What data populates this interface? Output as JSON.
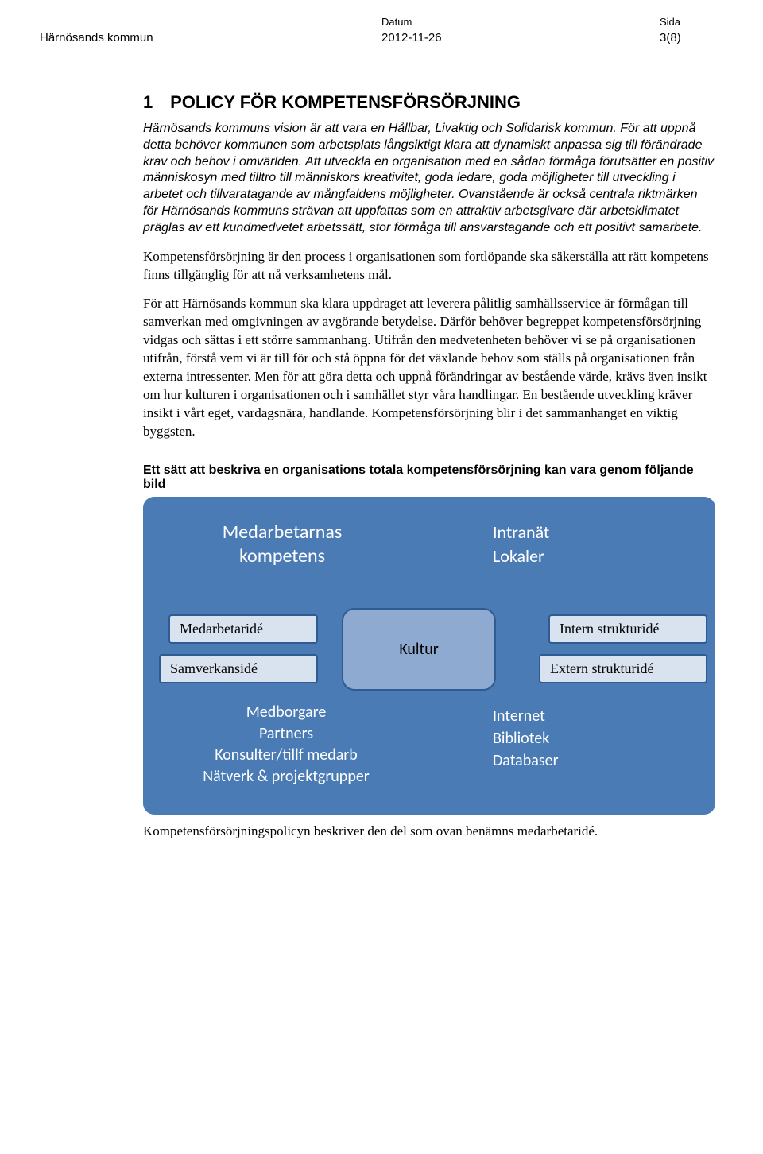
{
  "header": {
    "org": "Härnösands kommun",
    "date_label": "Datum",
    "date_value": "2012-11-26",
    "page_label": "Sida",
    "page_value": "3(8)"
  },
  "title_number": "1",
  "title_text": "POLICY FÖR KOMPETENSFÖRSÖRJNING",
  "intro_italic": "Härnösands kommuns vision är att vara en Hållbar, Livaktig och Solidarisk kommun. För att uppnå detta behöver kommunen som arbetsplats långsiktigt klara att dynamiskt anpassa sig till förändrade krav och behov i omvärlden. Att utveckla en organisation med en sådan förmåga förutsätter en positiv människosyn med tilltro till människors kreativitet, goda ledare, goda möjligheter till utveckling i arbetet och tillvaratagande av mångfaldens möjligheter. Ovanstående är också centrala riktmärken för Härnösands kommuns strävan att uppfattas som en attraktiv arbetsgivare där arbetsklimatet präglas av ett kundmedvetet arbetssätt, stor förmåga till ansvarstagande och ett positivt samarbete.",
  "para1": "Kompetensförsörjning är den process i organisationen som fortlöpande ska säkerställa att rätt kompetens finns tillgänglig för att nå verksamhetens mål.",
  "para2": "För att Härnösands kommun ska klara uppdraget att leverera pålitlig samhällsservice är förmågan till samverkan med omgivningen av avgörande betydelse. Därför behöver begreppet kompetensförsörjning vidgas och sättas i ett större sammanhang. Utifrån den medvetenheten behöver vi se på organisationen utifrån, förstå vem vi är till för och stå öppna för det växlande behov som ställs på organisationen från externa intressenter. Men för att göra detta och uppnå förändringar av bestående värde, krävs även insikt om hur kulturen i organisationen och i samhället styr våra handlingar. En bestående utveckling kräver insikt i vårt eget, vardagsnära, handlande. Kompetensförsörjning blir i det sammanhanget en viktig byggsten.",
  "fig_caption": "Ett sätt att beskriva en organisations totala kompetensförsörjning kan vara genom följande bild",
  "diagram": {
    "type": "infographic",
    "background_color": "#4a7bb5",
    "border_radius": 14,
    "text_color": "#ffffff",
    "center": {
      "label": "Kultur",
      "fill": "#8faad0",
      "border_color": "#2f5b93",
      "text_color": "#000000",
      "fontsize": 20
    },
    "tag_style": {
      "fill": "#d9e2ef",
      "border_color": "#2f5b93",
      "text_color": "#000000",
      "fontsize": 18
    },
    "top_left": {
      "line1": "Medarbetarnas",
      "line2": "kompetens",
      "fontsize": 24
    },
    "top_right": {
      "line1": "Intranät",
      "line2": "Lokaler",
      "fontsize": 22
    },
    "bottom_left": {
      "line1": "Medborgare",
      "line2": "Partners",
      "line3": "Konsulter/tillf medarb",
      "line4": "Nätverk & projektgrupper",
      "fontsize": 20
    },
    "bottom_right": {
      "line1": "Internet",
      "line2": "Bibliotek",
      "line3": "Databaser",
      "fontsize": 20
    },
    "tags": {
      "medarbetaride": "Medarbetaridé",
      "samverkanside": "Samverkansidé",
      "internstruktur": "Intern strukturidé",
      "externstruktur": "Extern strukturidé"
    }
  },
  "closing": "Kompetensförsörjningspolicyn beskriver den del som ovan benämns medarbetaridé."
}
